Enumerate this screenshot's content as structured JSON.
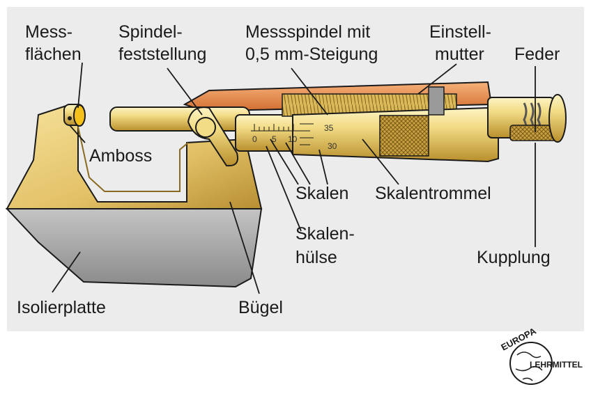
{
  "labels": {
    "messflaechen_1": "Mess-",
    "messflaechen_2": "flächen",
    "spindelfeststellung_1": "Spindel-",
    "spindelfeststellung_2": "feststellung",
    "messspindel_1": "Messspindel mit",
    "messspindel_2": "0,5 mm-Steigung",
    "einstellmutter_1": "Einstell-",
    "einstellmutter_2": "mutter",
    "feder": "Feder",
    "amboss": "Amboss",
    "skalen": "Skalen",
    "skalentrommel": "Skalentrommel",
    "skalenhuelse_1": "Skalen-",
    "skalenhuelse_2": "hülse",
    "kupplung": "Kupplung",
    "isolierplatte": "Isolierplatte",
    "buegel": "Bügel"
  },
  "scale": {
    "sleeve_numbers": [
      "0",
      "5",
      "10"
    ],
    "thimble_numbers": [
      "35",
      "30"
    ]
  },
  "logo": {
    "top": "EUROPA",
    "right": "LEHRMITTEL"
  },
  "colors": {
    "background": "#ececec",
    "brass": "#e8c85a",
    "brass_dark": "#b8902a",
    "copper": "#e0874a",
    "insulation": "#9a9a9a"
  }
}
